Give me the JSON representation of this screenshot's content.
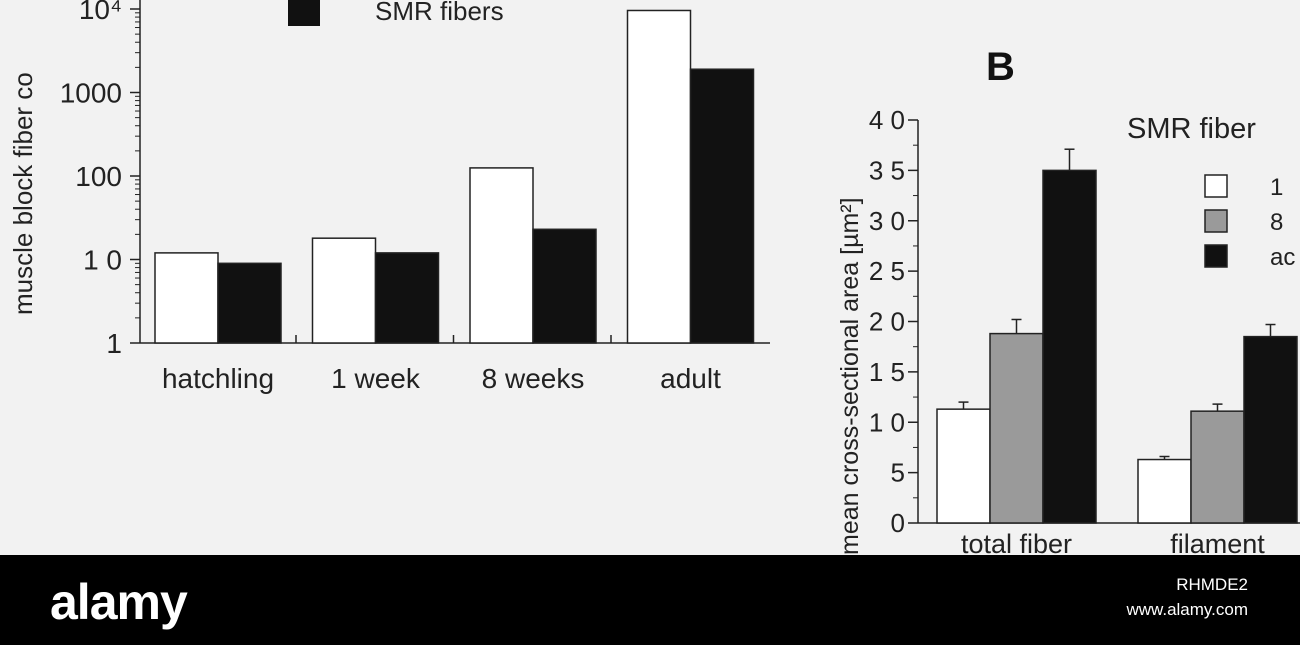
{
  "chart_data": [
    {
      "type": "bar",
      "scale": "log",
      "ylim": [
        1,
        10000
      ],
      "ylabel": "muscle block fiber co",
      "yticks": [
        "1",
        "1 0",
        "100",
        "1000",
        "10⁴"
      ],
      "categories": [
        "hatchling",
        "1 week",
        "8 weeks",
        "adult"
      ],
      "legend": [
        "SMR fibers"
      ],
      "series": [
        {
          "name": "",
          "color": "#ffffff",
          "values": [
            12,
            18,
            125,
            9600
          ]
        },
        {
          "name": "SMR fibers",
          "color": "#111111",
          "values": [
            9,
            12,
            23,
            1900
          ]
        }
      ]
    },
    {
      "type": "bar",
      "panel_label": "B",
      "title": "SMR fiber",
      "ylabel": "mean cross-sectional area [µm²]",
      "ylim": [
        0,
        40
      ],
      "yticks": [
        "0",
        "5",
        "1 0",
        "1 5",
        "2 0",
        "2 5",
        "3 0",
        "3 5",
        "4 0"
      ],
      "categories": [
        "total fiber",
        "filament"
      ],
      "legend": [
        "1",
        "8",
        "ac"
      ],
      "series": [
        {
          "name": "1",
          "color": "#ffffff",
          "values": [
            11.3,
            6.3
          ],
          "errors": [
            0.7,
            0.3
          ]
        },
        {
          "name": "8",
          "color": "#9a9a9a",
          "values": [
            18.8,
            11.1
          ],
          "errors": [
            1.4,
            0.7
          ]
        },
        {
          "name": "ac",
          "color": "#111111",
          "values": [
            35.0,
            18.5
          ],
          "errors": [
            2.1,
            1.2
          ]
        }
      ]
    }
  ],
  "watermark": {
    "logo": "alamy",
    "image_id": "RHMDE2",
    "url": "www.alamy.com"
  }
}
